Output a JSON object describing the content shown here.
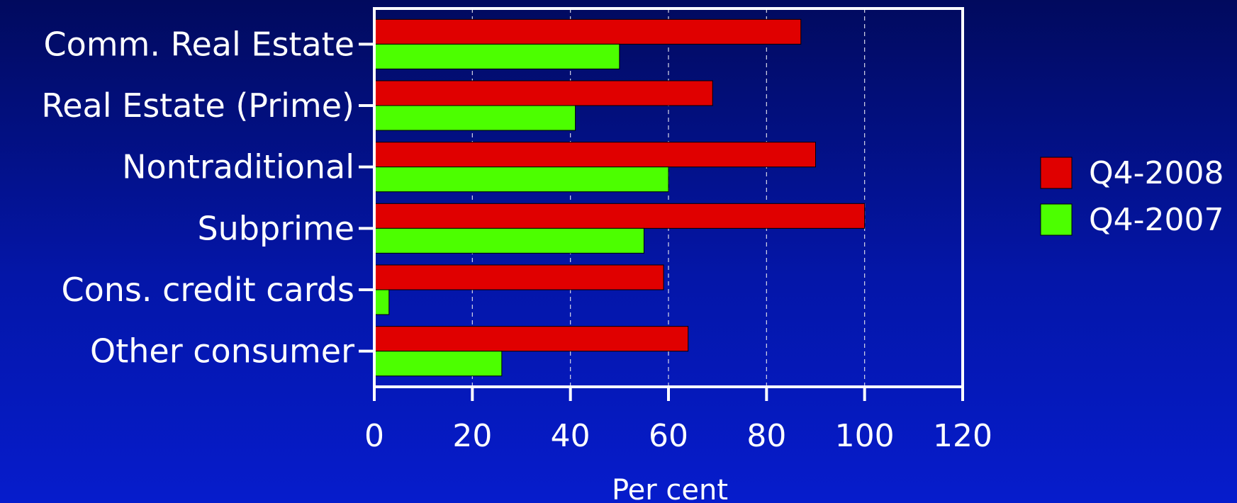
{
  "chart_data": {
    "type": "bar",
    "orientation": "horizontal",
    "categories": [
      "Comm. Real Estate",
      "Real Estate (Prime)",
      "Nontraditional",
      "Subprime",
      "Cons. credit cards",
      "Other consumer"
    ],
    "series": [
      {
        "name": "Q4-2008",
        "color": "#e00000",
        "values": [
          87,
          69,
          90,
          100,
          59,
          64
        ]
      },
      {
        "name": "Q4-2007",
        "color": "#4cff00",
        "values": [
          50,
          41,
          60,
          55,
          3,
          26
        ]
      }
    ],
    "xlabel": "Per cent",
    "ylabel": "",
    "xlim": [
      0,
      120
    ],
    "xticks": [
      "0",
      "20",
      "40",
      "60",
      "80",
      "100",
      "120"
    ],
    "grid": "vertical dashed",
    "legend_position": "right"
  }
}
